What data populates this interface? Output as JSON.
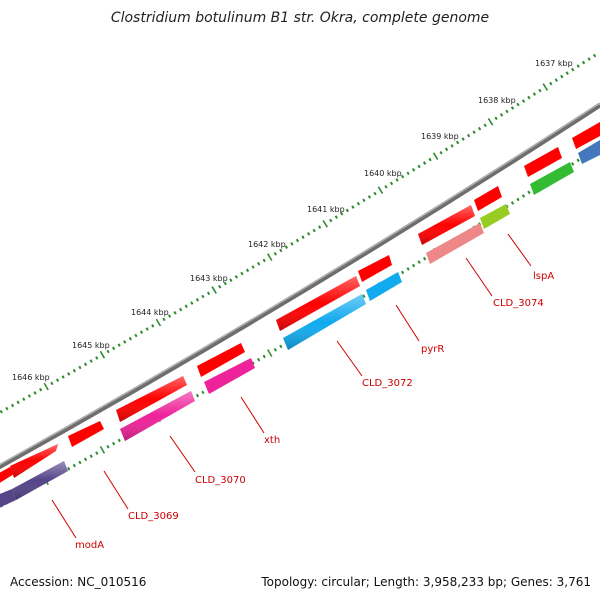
{
  "title": "Clostridium botulinum B1 str. Okra, complete genome",
  "footer": {
    "accession": "Accession: NC_010516",
    "topology": "Topology: circular; Length: 3,958,233 bp; Genes: 3,761"
  },
  "scale_labels": [
    "1637 kbp",
    "1638 kbp",
    "1639 kbp",
    "1640 kbp",
    "1641 kbp",
    "1642 kbp",
    "1643 kbp",
    "1644 kbp",
    "1645 kbp",
    "1646 kbp"
  ],
  "gene_labels": [
    "lspA",
    "CLD_3074",
    "pyrR",
    "CLD_3072",
    "xth",
    "CLD_3070",
    "CLD_3069",
    "modA"
  ],
  "colors": {
    "backbone": "#888888",
    "tick": "#2e8b2e",
    "label": "#cc0000",
    "forward_gene": "#ff0000",
    "lspA": "#99cc22",
    "CLD_3074": "#ee8888",
    "pyrR": "#11aaee",
    "CLD_3072": "#11aaee",
    "xth": "#ee2299",
    "CLD_3070": "#ee2299",
    "modA": "#554488",
    "green_gene": "#33bb33",
    "blue_gene": "#4477bb"
  }
}
